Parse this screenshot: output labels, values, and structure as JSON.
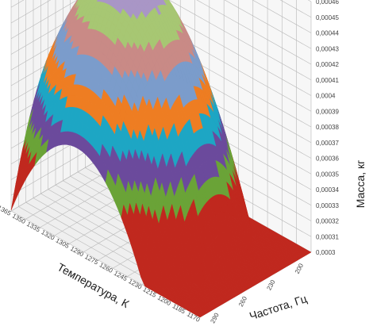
{
  "chart_data": {
    "type": "surface-3d",
    "title": "",
    "xlabel": "Температура, К",
    "ylabel": "Частота, Гц",
    "zlabel": "Масса, кг",
    "x_ticks": [
      "1365",
      "1350",
      "1335",
      "1320",
      "1305",
      "1290",
      "1275",
      "1260",
      "1245",
      "1230",
      "1215",
      "1200",
      "1185",
      "1170"
    ],
    "y_ticks": [
      "290",
      "260",
      "230",
      "200"
    ],
    "z_ticks": [
      "0,0003",
      "0,00031",
      "0,00032",
      "0,00033",
      "0,00034",
      "0,00035",
      "0,00036",
      "0,00037",
      "0,00038",
      "0,00039",
      "0,0004",
      "0,00041",
      "0,00042",
      "0,00043",
      "0,00044",
      "0,00045",
      "0,00046"
    ],
    "zlim": [
      0.0003,
      0.00046
    ],
    "grid": true,
    "band_colors": [
      "#c0281e",
      "#6aa337",
      "#6b4a9c",
      "#1da6c4",
      "#ee7d22",
      "#7b9ccb",
      "#c98a86",
      "#a7c773",
      "#a996c6"
    ],
    "surface_samples": {
      "note_columns": "rows follow x_ticks order, columns follow y_ticks order",
      "z": [
        [
          0.00036,
          0.00042,
          0.00042,
          0.00036
        ],
        [
          0.00038,
          0.00044,
          0.00044,
          0.00038
        ],
        [
          0.00039,
          0.000455,
          0.000455,
          0.00039
        ],
        [
          0.00038,
          0.000445,
          0.000445,
          0.00038
        ],
        [
          0.00036,
          0.00042,
          0.00042,
          0.00036
        ],
        [
          0.00033,
          0.00039,
          0.00039,
          0.00033
        ]
      ]
    }
  }
}
